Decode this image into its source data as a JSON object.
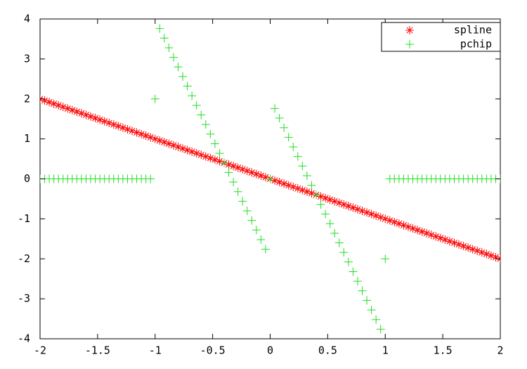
{
  "chart_data": {
    "type": "scatter",
    "x": [
      -2,
      -1.96,
      -1.92,
      -1.88,
      -1.84,
      -1.8,
      -1.76,
      -1.72,
      -1.68,
      -1.64,
      -1.6,
      -1.56,
      -1.52,
      -1.48,
      -1.44,
      -1.4,
      -1.36,
      -1.32,
      -1.28,
      -1.24,
      -1.2,
      -1.16,
      -1.12,
      -1.08,
      -1.04,
      -1,
      -0.96,
      -0.92,
      -0.88,
      -0.84,
      -0.8,
      -0.76,
      -0.72,
      -0.68,
      -0.64,
      -0.6,
      -0.56,
      -0.52,
      -0.48,
      -0.44,
      -0.4,
      -0.36,
      -0.32,
      -0.28,
      -0.24,
      -0.2,
      -0.16,
      -0.12,
      -0.08,
      -0.04,
      0,
      0.04,
      0.08,
      0.12,
      0.16,
      0.2,
      0.24,
      0.28,
      0.32,
      0.36,
      0.4,
      0.44,
      0.48,
      0.52,
      0.56,
      0.6,
      0.64,
      0.68,
      0.72,
      0.76,
      0.8,
      0.84,
      0.88,
      0.92,
      0.96,
      1,
      1.04,
      1.08,
      1.12,
      1.16,
      1.2,
      1.24,
      1.28,
      1.32,
      1.36,
      1.4,
      1.44,
      1.48,
      1.52,
      1.56,
      1.6,
      1.64,
      1.68,
      1.72,
      1.76,
      1.8,
      1.84,
      1.88,
      1.92,
      1.96,
      2
    ],
    "series": [
      {
        "name": "spline",
        "color": "#ff0000",
        "marker": "star",
        "values": [
          2,
          1.96,
          1.92,
          1.88,
          1.84,
          1.8,
          1.76,
          1.72,
          1.68,
          1.64,
          1.6,
          1.56,
          1.52,
          1.48,
          1.44,
          1.4,
          1.36,
          1.32,
          1.28,
          1.24,
          1.2,
          1.16,
          1.12,
          1.08,
          1.04,
          1,
          0.96,
          0.92,
          0.88,
          0.84,
          0.8,
          0.76,
          0.72,
          0.68,
          0.64,
          0.6,
          0.56,
          0.52,
          0.48,
          0.44,
          0.4,
          0.36,
          0.32,
          0.28,
          0.24,
          0.2,
          0.16,
          0.12,
          0.08,
          0.04,
          0,
          -0.04,
          -0.08,
          -0.12,
          -0.16,
          -0.2,
          -0.24,
          -0.28,
          -0.32,
          -0.36,
          -0.4,
          -0.44,
          -0.48,
          -0.52,
          -0.56,
          -0.6,
          -0.64,
          -0.68,
          -0.72,
          -0.76,
          -0.8,
          -0.84,
          -0.88,
          -0.92,
          -0.96,
          -1,
          -1.04,
          -1.08,
          -1.12,
          -1.16,
          -1.2,
          -1.24,
          -1.28,
          -1.32,
          -1.36,
          -1.4,
          -1.44,
          -1.48,
          -1.52,
          -1.56,
          -1.6,
          -1.64,
          -1.68,
          -1.72,
          -1.76,
          -1.8,
          -1.84,
          -1.88,
          -1.92,
          -1.96,
          -2
        ]
      },
      {
        "name": "pchip",
        "color": "#22dd22",
        "marker": "plus",
        "values": [
          0,
          0,
          0,
          0,
          0,
          0,
          0,
          0,
          0,
          0,
          0,
          0,
          0,
          0,
          0,
          0,
          0,
          0,
          0,
          0,
          0,
          0,
          0,
          0,
          0,
          2,
          3.76,
          3.52,
          3.28,
          3.04,
          2.8,
          2.56,
          2.32,
          2.08,
          1.84,
          1.6,
          1.36,
          1.12,
          0.88,
          0.64,
          0.4,
          0.16,
          -0.08,
          -0.32,
          -0.56,
          -0.8,
          -1.04,
          -1.28,
          -1.52,
          -1.76,
          0,
          1.76,
          1.52,
          1.28,
          1.04,
          0.8,
          0.56,
          0.32,
          0.08,
          -0.16,
          -0.4,
          -0.64,
          -0.88,
          -1.12,
          -1.36,
          -1.6,
          -1.84,
          -2.08,
          -2.32,
          -2.56,
          -2.8,
          -3.04,
          -3.28,
          -3.52,
          -3.76,
          -2,
          0,
          0,
          0,
          0,
          0,
          0,
          0,
          0,
          0,
          0,
          0,
          0,
          0,
          0,
          0,
          0,
          0,
          0,
          0,
          0,
          0,
          0,
          0,
          0,
          0
        ]
      }
    ],
    "xlim": [
      -2,
      2
    ],
    "xticks": [
      -2,
      -1.5,
      -1,
      -0.5,
      0,
      0.5,
      1,
      1.5,
      2
    ],
    "ylim": [
      -4,
      4
    ],
    "yticks": [
      -4,
      -3,
      -2,
      -1,
      0,
      1,
      2,
      3,
      4
    ],
    "grid": false,
    "legend": "top-right"
  }
}
